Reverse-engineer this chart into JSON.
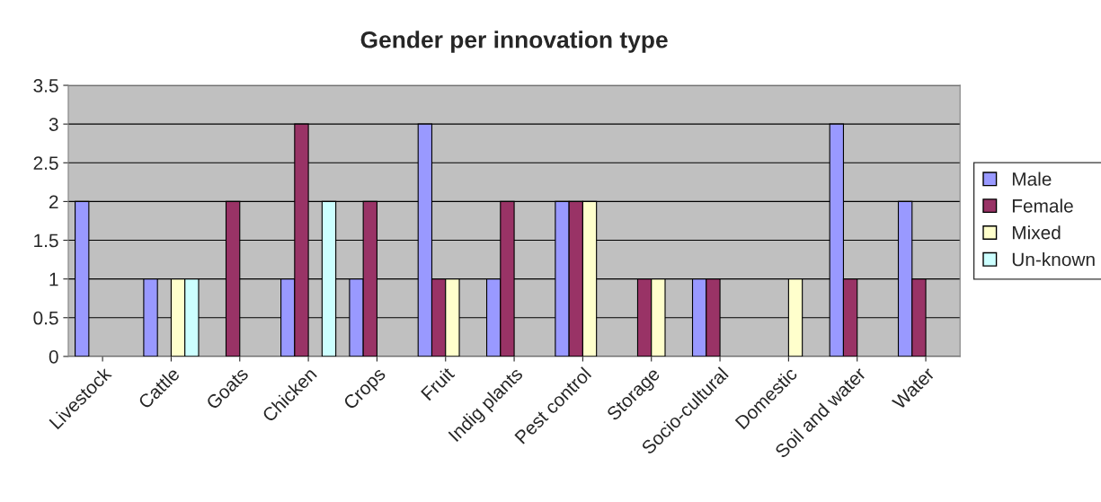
{
  "chart_data": {
    "type": "bar",
    "title": "Gender per innovation type",
    "categories": [
      "Livestock",
      "Cattle",
      "Goats",
      "Chicken",
      "Crops",
      "Fruit",
      "Indig plants",
      "Pest control",
      "Storage",
      "Socio-cultural",
      "Domestic",
      "Soil and water",
      "Water"
    ],
    "series": [
      {
        "name": "Male",
        "color": "#9999ff",
        "values": [
          2,
          1,
          0,
          1,
          1,
          3,
          1,
          2,
          0,
          1,
          0,
          3,
          2
        ]
      },
      {
        "name": "Female",
        "color": "#993366",
        "values": [
          0,
          0,
          2,
          3,
          2,
          1,
          2,
          2,
          1,
          1,
          0,
          1,
          1
        ]
      },
      {
        "name": "Mixed",
        "color": "#ffffcc",
        "values": [
          0,
          1,
          0,
          0,
          0,
          1,
          0,
          2,
          1,
          0,
          1,
          0,
          0
        ]
      },
      {
        "name": "Un-known",
        "color": "#ccffff",
        "values": [
          0,
          1,
          0,
          2,
          0,
          0,
          0,
          0,
          0,
          0,
          0,
          0,
          0
        ]
      }
    ],
    "ylim": [
      0,
      3.5
    ],
    "yticks": [
      0,
      0.5,
      1,
      1.5,
      2,
      2.5,
      3,
      3.5
    ],
    "grid": "y",
    "legend": "right"
  }
}
